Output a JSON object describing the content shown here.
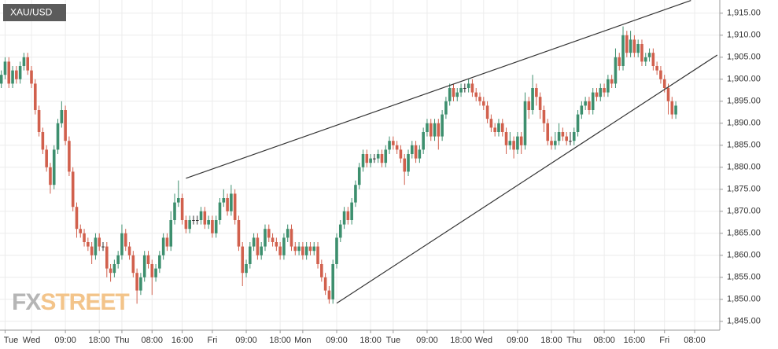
{
  "chart_data": {
    "type": "candlestick",
    "symbol": "XAU/USD",
    "watermark": [
      "FX",
      "STREET"
    ],
    "up_color": "#3d8f6e",
    "down_color": "#d1604d",
    "grid": true,
    "ylim": [
      1843,
      1918
    ],
    "yticks": [
      {
        "value": 1845,
        "label": "1,845.00"
      },
      {
        "value": 1850,
        "label": "1,850.00"
      },
      {
        "value": 1855,
        "label": "1,855.00"
      },
      {
        "value": 1860,
        "label": "1,860.00"
      },
      {
        "value": 1865,
        "label": "1,865.00"
      },
      {
        "value": 1870,
        "label": "1,870.00"
      },
      {
        "value": 1875,
        "label": "1,875.00"
      },
      {
        "value": 1880,
        "label": "1,880.00"
      },
      {
        "value": 1885,
        "label": "1,885.00"
      },
      {
        "value": 1890,
        "label": "1,890.00"
      },
      {
        "value": 1895,
        "label": "1,895.00"
      },
      {
        "value": 1900,
        "label": "1,900.00"
      },
      {
        "value": 1905,
        "label": "1,905.00"
      },
      {
        "value": 1910,
        "label": "1,910.00"
      },
      {
        "value": 1915,
        "label": "1,915.00"
      }
    ],
    "categories": [
      null,
      "Tue",
      null,
      null,
      null,
      null,
      null,
      null,
      "Wed",
      null,
      null,
      null,
      null,
      null,
      null,
      null,
      null,
      "09:00",
      null,
      null,
      null,
      null,
      null,
      null,
      null,
      null,
      "18:00",
      null,
      null,
      null,
      null,
      null,
      "Thu",
      null,
      null,
      null,
      null,
      null,
      null,
      null,
      "08:00",
      null,
      null,
      null,
      null,
      null,
      null,
      null,
      "16:00",
      null,
      null,
      null,
      null,
      null,
      null,
      null,
      "Fri",
      null,
      null,
      null,
      null,
      null,
      null,
      null,
      null,
      "09:00",
      null,
      null,
      null,
      null,
      null,
      null,
      null,
      null,
      "18:00",
      null,
      null,
      null,
      null,
      null,
      "Mon",
      null,
      null,
      null,
      null,
      null,
      null,
      null,
      null,
      "09:00",
      null,
      null,
      null,
      null,
      null,
      null,
      null,
      null,
      "18:00",
      null,
      null,
      null,
      null,
      null,
      "Tue",
      null,
      null,
      null,
      null,
      null,
      null,
      null,
      null,
      "09:00",
      null,
      null,
      null,
      null,
      null,
      null,
      null,
      null,
      "18:00",
      null,
      null,
      null,
      null,
      null,
      "Wed",
      null,
      null,
      null,
      null,
      null,
      null,
      null,
      null,
      "09:00",
      null,
      null,
      null,
      null,
      null,
      null,
      null,
      null,
      "18:00",
      null,
      null,
      null,
      null,
      null,
      "Thu",
      null,
      null,
      null,
      null,
      null,
      null,
      null,
      "08:00",
      null,
      null,
      null,
      null,
      null,
      null,
      null,
      "16:00",
      null,
      null,
      null,
      null,
      null,
      null,
      null,
      "Fri",
      null,
      null,
      null,
      null,
      null,
      null,
      null,
      "08:00"
    ],
    "ohlc": [
      [
        1899,
        1902,
        1898,
        1901
      ],
      [
        1901,
        1905,
        1900,
        1904
      ],
      [
        1904,
        1905,
        1898,
        1899
      ],
      [
        1899,
        1903,
        1898,
        1902
      ],
      [
        1902,
        1903,
        1899,
        1900
      ],
      [
        1900,
        1904,
        1899,
        1903
      ],
      [
        1903,
        1906,
        1902,
        1905
      ],
      [
        1905,
        1906,
        1901,
        1902
      ],
      [
        1902,
        1903,
        1898,
        1899
      ],
      [
        1899,
        1900,
        1892,
        1893
      ],
      [
        1893,
        1894,
        1887,
        1888
      ],
      [
        1888,
        1889,
        1883,
        1884
      ],
      [
        1884,
        1885,
        1879,
        1880
      ],
      [
        1880,
        1881,
        1874,
        1876
      ],
      [
        1876,
        1885,
        1875,
        1884
      ],
      [
        1884,
        1891,
        1883,
        1890
      ],
      [
        1890,
        1895,
        1889,
        1893
      ],
      [
        1893,
        1894,
        1885,
        1886
      ],
      [
        1886,
        1887,
        1878,
        1879
      ],
      [
        1879,
        1880,
        1870,
        1871
      ],
      [
        1871,
        1872,
        1864,
        1866
      ],
      [
        1866,
        1867,
        1864,
        1865
      ],
      [
        1865,
        1866,
        1862,
        1863
      ],
      [
        1863,
        1864,
        1861,
        1862
      ],
      [
        1862,
        1863,
        1858,
        1860
      ],
      [
        1860,
        1865,
        1859,
        1864
      ],
      [
        1864,
        1865,
        1861,
        1862
      ],
      [
        1862,
        1863,
        1861,
        1862
      ],
      [
        1862,
        1863,
        1855,
        1857
      ],
      [
        1857,
        1858,
        1854,
        1856
      ],
      [
        1856,
        1859,
        1855,
        1858
      ],
      [
        1858,
        1861,
        1857,
        1860
      ],
      [
        1860,
        1867,
        1859,
        1865
      ],
      [
        1865,
        1866,
        1861,
        1862
      ],
      [
        1862,
        1863,
        1859,
        1860
      ],
      [
        1860,
        1861,
        1855,
        1856
      ],
      [
        1856,
        1857,
        1849,
        1852
      ],
      [
        1852,
        1856,
        1851,
        1855
      ],
      [
        1855,
        1861,
        1854,
        1860
      ],
      [
        1860,
        1861,
        1857,
        1858
      ],
      [
        1858,
        1859,
        1851,
        1855
      ],
      [
        1855,
        1858,
        1854,
        1857
      ],
      [
        1857,
        1861,
        1856,
        1860
      ],
      [
        1860,
        1865,
        1859,
        1864
      ],
      [
        1864,
        1865,
        1861,
        1862
      ],
      [
        1862,
        1870,
        1861,
        1868
      ],
      [
        1868,
        1874,
        1867,
        1872
      ],
      [
        1872,
        1877,
        1871,
        1873
      ],
      [
        1873,
        1874,
        1867,
        1868
      ],
      [
        1868,
        1869,
        1865,
        1866
      ],
      [
        1866,
        1869,
        1865,
        1868
      ],
      [
        1868,
        1869,
        1867,
        1868
      ],
      [
        1868,
        1869,
        1867,
        1868
      ],
      [
        1868,
        1871,
        1867,
        1870
      ],
      [
        1870,
        1871,
        1866,
        1867
      ],
      [
        1867,
        1869,
        1866,
        1868
      ],
      [
        1868,
        1869,
        1864,
        1865
      ],
      [
        1865,
        1869,
        1864,
        1868
      ],
      [
        1868,
        1873,
        1867,
        1872
      ],
      [
        1872,
        1875,
        1871,
        1873
      ],
      [
        1873,
        1874,
        1869,
        1870
      ],
      [
        1870,
        1876,
        1869,
        1874
      ],
      [
        1874,
        1875,
        1867,
        1868
      ],
      [
        1868,
        1869,
        1861,
        1862
      ],
      [
        1862,
        1863,
        1853,
        1856
      ],
      [
        1856,
        1859,
        1855,
        1858
      ],
      [
        1858,
        1863,
        1857,
        1862
      ],
      [
        1862,
        1865,
        1861,
        1864
      ],
      [
        1864,
        1865,
        1859,
        1860
      ],
      [
        1860,
        1863,
        1859,
        1862
      ],
      [
        1862,
        1867,
        1861,
        1866
      ],
      [
        1866,
        1867,
        1863,
        1864
      ],
      [
        1864,
        1865,
        1862,
        1863
      ],
      [
        1863,
        1864,
        1861,
        1862
      ],
      [
        1862,
        1863,
        1859,
        1860
      ],
      [
        1860,
        1865,
        1859,
        1864
      ],
      [
        1864,
        1867,
        1863,
        1866
      ],
      [
        1866,
        1867,
        1861,
        1862
      ],
      [
        1862,
        1863,
        1860,
        1861
      ],
      [
        1861,
        1863,
        1860,
        1862
      ],
      [
        1862,
        1863,
        1859,
        1860
      ],
      [
        1860,
        1863,
        1859,
        1862
      ],
      [
        1862,
        1863,
        1860,
        1861
      ],
      [
        1861,
        1863,
        1860,
        1862
      ],
      [
        1862,
        1863,
        1857,
        1858
      ],
      [
        1858,
        1859,
        1854,
        1855
      ],
      [
        1855,
        1856,
        1851,
        1852
      ],
      [
        1852,
        1853,
        1849,
        1850
      ],
      [
        1850,
        1859,
        1849,
        1858
      ],
      [
        1858,
        1865,
        1857,
        1864
      ],
      [
        1864,
        1868,
        1863,
        1867
      ],
      [
        1867,
        1871,
        1866,
        1870
      ],
      [
        1870,
        1871,
        1867,
        1868
      ],
      [
        1868,
        1873,
        1867,
        1872
      ],
      [
        1872,
        1877,
        1871,
        1876
      ],
      [
        1876,
        1881,
        1875,
        1880
      ],
      [
        1880,
        1884,
        1879,
        1883
      ],
      [
        1883,
        1884,
        1880,
        1881
      ],
      [
        1881,
        1883,
        1880,
        1882
      ],
      [
        1882,
        1883,
        1881,
        1882
      ],
      [
        1882,
        1884,
        1881,
        1883
      ],
      [
        1883,
        1884,
        1880,
        1881
      ],
      [
        1881,
        1885,
        1880,
        1884
      ],
      [
        1884,
        1887,
        1883,
        1886
      ],
      [
        1886,
        1887,
        1884,
        1885
      ],
      [
        1885,
        1886,
        1883,
        1884
      ],
      [
        1884,
        1885,
        1881,
        1882
      ],
      [
        1882,
        1883,
        1876,
        1879
      ],
      [
        1879,
        1884,
        1878,
        1883
      ],
      [
        1883,
        1886,
        1882,
        1885
      ],
      [
        1885,
        1886,
        1881,
        1882
      ],
      [
        1882,
        1885,
        1881,
        1884
      ],
      [
        1884,
        1889,
        1883,
        1888
      ],
      [
        1888,
        1891,
        1887,
        1890
      ],
      [
        1890,
        1891,
        1886,
        1887
      ],
      [
        1887,
        1891,
        1886,
        1890
      ],
      [
        1890,
        1891,
        1884,
        1887
      ],
      [
        1887,
        1893,
        1886,
        1892
      ],
      [
        1892,
        1896,
        1891,
        1895
      ],
      [
        1895,
        1899,
        1894,
        1898
      ],
      [
        1898,
        1899,
        1895,
        1896
      ],
      [
        1896,
        1898,
        1895,
        1897
      ],
      [
        1897,
        1899,
        1896,
        1898
      ],
      [
        1898,
        1899,
        1897,
        1898
      ],
      [
        1898,
        1900,
        1897,
        1899
      ],
      [
        1899,
        1900,
        1896,
        1897
      ],
      [
        1897,
        1898,
        1895,
        1896
      ],
      [
        1896,
        1897,
        1894,
        1895
      ],
      [
        1895,
        1896,
        1893,
        1894
      ],
      [
        1894,
        1895,
        1890,
        1891
      ],
      [
        1891,
        1892,
        1888,
        1889
      ],
      [
        1889,
        1890,
        1887,
        1888
      ],
      [
        1888,
        1891,
        1887,
        1890
      ],
      [
        1890,
        1891,
        1887,
        1888
      ],
      [
        1888,
        1889,
        1883,
        1885
      ],
      [
        1885,
        1888,
        1884,
        1886
      ],
      [
        1886,
        1887,
        1882,
        1884
      ],
      [
        1884,
        1888,
        1883,
        1887
      ],
      [
        1887,
        1888,
        1883,
        1885
      ],
      [
        1885,
        1897,
        1884,
        1895
      ],
      [
        1895,
        1896,
        1891,
        1893
      ],
      [
        1893,
        1901,
        1892,
        1898
      ],
      [
        1898,
        1899,
        1894,
        1896
      ],
      [
        1896,
        1897,
        1891,
        1893
      ],
      [
        1893,
        1894,
        1888,
        1890
      ],
      [
        1890,
        1891,
        1885,
        1886
      ],
      [
        1886,
        1887,
        1884,
        1885
      ],
      [
        1885,
        1888,
        1884,
        1886
      ],
      [
        1886,
        1890,
        1885,
        1888
      ],
      [
        1888,
        1889,
        1886,
        1887
      ],
      [
        1887,
        1888,
        1885,
        1886
      ],
      [
        1886,
        1888,
        1885,
        1886
      ],
      [
        1886,
        1889,
        1885,
        1888
      ],
      [
        1888,
        1893,
        1887,
        1892
      ],
      [
        1892,
        1895,
        1891,
        1894
      ],
      [
        1894,
        1896,
        1893,
        1895
      ],
      [
        1895,
        1896,
        1892,
        1893
      ],
      [
        1893,
        1898,
        1892,
        1897
      ],
      [
        1897,
        1898,
        1895,
        1896
      ],
      [
        1896,
        1899,
        1895,
        1898
      ],
      [
        1898,
        1899,
        1896,
        1897
      ],
      [
        1897,
        1901,
        1896,
        1900
      ],
      [
        1900,
        1901,
        1898,
        1899
      ],
      [
        1899,
        1907,
        1898,
        1905
      ],
      [
        1905,
        1906,
        1902,
        1903
      ],
      [
        1903,
        1912,
        1902,
        1910
      ],
      [
        1910,
        1911,
        1905,
        1906
      ],
      [
        1906,
        1911,
        1905,
        1909
      ],
      [
        1909,
        1910,
        1905,
        1906
      ],
      [
        1906,
        1909,
        1905,
        1908
      ],
      [
        1908,
        1909,
        1903,
        1904
      ],
      [
        1904,
        1906,
        1903,
        1905
      ],
      [
        1905,
        1907,
        1904,
        1906
      ],
      [
        1906,
        1907,
        1902,
        1903
      ],
      [
        1903,
        1904,
        1901,
        1902
      ],
      [
        1902,
        1903,
        1899,
        1900
      ],
      [
        1900,
        1901,
        1897,
        1898
      ],
      [
        1898,
        1899,
        1892,
        1895
      ],
      [
        1895,
        1896,
        1891,
        1892
      ],
      [
        1892,
        1895,
        1891,
        1894
      ],
      null,
      null,
      null,
      null,
      null
    ],
    "trendlines": [
      {
        "x": [
          49,
          183
        ],
        "y": [
          1877.5,
          1917.9
        ]
      },
      {
        "x": [
          89,
          190
        ],
        "y": [
          1849.1,
          1905.5
        ]
      }
    ]
  }
}
